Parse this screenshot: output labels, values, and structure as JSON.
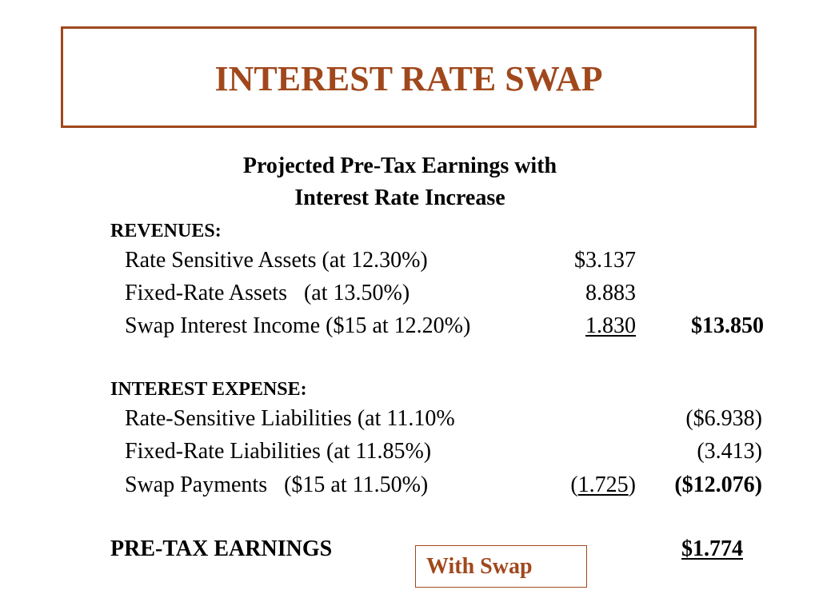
{
  "title": "INTEREST RATE SWAP",
  "subtitle": {
    "line1": "Projected Pre-Tax Earnings with",
    "line2": "Interest Rate Increase"
  },
  "revenues": {
    "heading": "REVENUES:",
    "rows": [
      {
        "label": "Rate Sensitive Assets (at 12.30%)",
        "amount": "$3.137"
      },
      {
        "label": "Fixed-Rate Assets   (at 13.50%)",
        "amount": "8.883"
      },
      {
        "label": "Swap Interest Income ($15 at 12.20%)",
        "amount": "1.830"
      }
    ],
    "total": "$13.850"
  },
  "interest_expense": {
    "heading": "INTEREST EXPENSE:",
    "rows": [
      {
        "label": "Rate-Sensitive Liabilities (at 11.10%",
        "amount": "",
        "total": "($6.938)"
      },
      {
        "label": "Fixed-Rate Liabilities (at 11.85%)",
        "amount": "",
        "total": "(3.413)"
      },
      {
        "label": "Swap Payments   ($15 at 11.50%)",
        "amount_open": "(",
        "amount": "1.725",
        "amount_close": ")",
        "total": "($12.076)"
      }
    ]
  },
  "pre_tax": {
    "label": "PRE-TAX EARNINGS",
    "value": "$1.774"
  },
  "callout": "With Swap",
  "colors": {
    "accent": "#a0481c",
    "text": "#000000",
    "background": "#ffffff"
  }
}
